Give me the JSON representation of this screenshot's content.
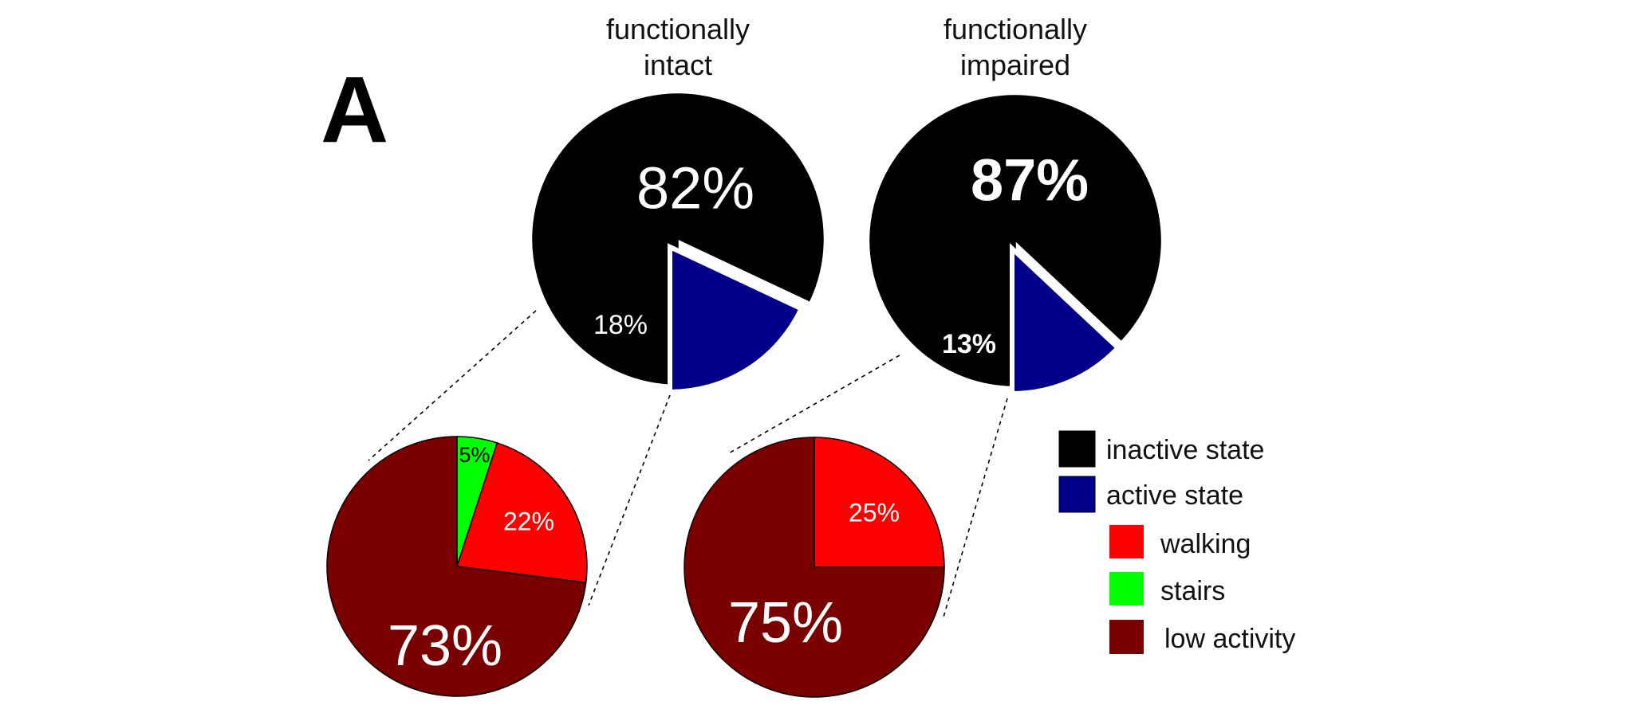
{
  "figure": {
    "panel_label": "A"
  },
  "colors": {
    "inactive": "#000000",
    "active": "#00008b",
    "walking": "#ff0000",
    "stairs": "#00ff00",
    "low_activity": "#7a0000",
    "label_light": "#ffffff",
    "label_dark": "#000000"
  },
  "legend": {
    "items": [
      {
        "label": "inactive state",
        "key": "inactive"
      },
      {
        "label": "active state",
        "key": "active"
      },
      {
        "label": "walking",
        "key": "walking"
      },
      {
        "label": "stairs",
        "key": "stairs"
      },
      {
        "label": "low activity",
        "key": "low_activity"
      }
    ]
  },
  "chart_data": [
    {
      "type": "pie",
      "title": "functionally intact",
      "title_lines": [
        "functionally",
        "intact"
      ],
      "slices": [
        {
          "label": "inactive state",
          "key": "inactive",
          "value": 82,
          "text": "82%"
        },
        {
          "label": "active state",
          "key": "active",
          "value": 18,
          "text": "18%",
          "exploded": true
        }
      ]
    },
    {
      "type": "pie",
      "title": "functionally impaired",
      "title_lines": [
        "functionally",
        "impaired"
      ],
      "slices": [
        {
          "label": "inactive state",
          "key": "inactive",
          "value": 87,
          "text": "87%"
        },
        {
          "label": "active state",
          "key": "active",
          "value": 13,
          "text": "13%",
          "exploded": true
        }
      ]
    },
    {
      "type": "pie",
      "title": "",
      "breakdown_of": "functionally intact active state",
      "slices": [
        {
          "label": "stairs",
          "key": "stairs",
          "value": 5,
          "text": "5%"
        },
        {
          "label": "walking",
          "key": "walking",
          "value": 22,
          "text": "22%"
        },
        {
          "label": "low activity",
          "key": "low_activity",
          "value": 73,
          "text": "73%"
        }
      ]
    },
    {
      "type": "pie",
      "title": "",
      "breakdown_of": "functionally impaired active state",
      "slices": [
        {
          "label": "walking",
          "key": "walking",
          "value": 25,
          "text": "25%"
        },
        {
          "label": "low activity",
          "key": "low_activity",
          "value": 75,
          "text": "75%"
        }
      ]
    }
  ]
}
